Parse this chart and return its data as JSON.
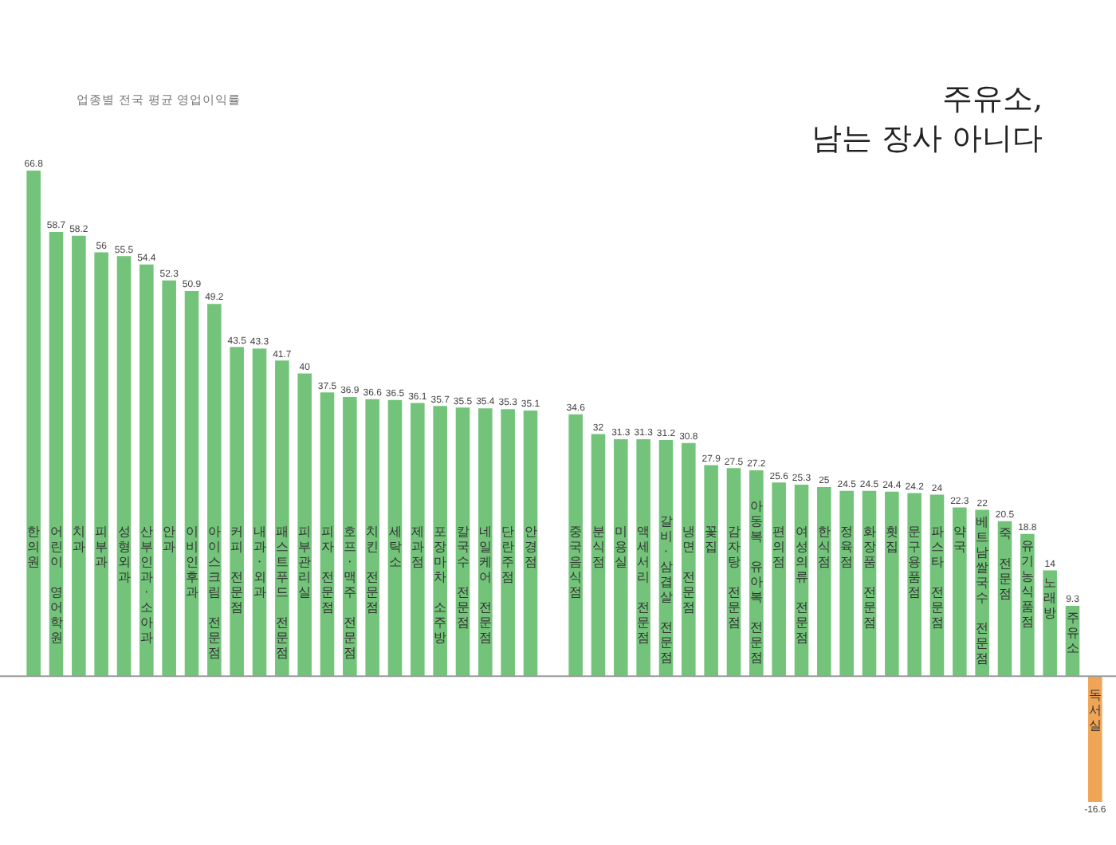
{
  "chart_data": {
    "type": "bar",
    "title": "주유소,\n남는 장사 아니다",
    "subtitle": "업종별 전국 평균 영업이익률",
    "categories": [
      "한의원",
      "어린이 영어학원",
      "치과",
      "피부과",
      "성형외과",
      "산부인과·소아과",
      "안과",
      "이비인후과",
      "아이스크림 전문점",
      "커피 전문점",
      "내과·외과",
      "패스트푸드 전문점",
      "피부관리실",
      "피자 전문점",
      "호프·맥주 전문점",
      "치킨 전문점",
      "세탁소",
      "제과점",
      "포장마차 소주방",
      "칼국수 전문점",
      "네일케어 전문점",
      "단란주점",
      "안경점",
      null,
      "중국음식점",
      "분식점",
      "미용실",
      "액세서리 전문점",
      "갈비·삼겹살 전문점",
      "냉면 전문점",
      "꽃집",
      "감자탕 전문점",
      "아동복 유아복 전문점",
      "편의점",
      "여성의류 전문점",
      "한식점",
      "정육점",
      "화장품 전문점",
      "횟집",
      "문구용품점",
      "파스타 전문점",
      "약국",
      "베트남쌀국수 전문점",
      "죽 전문점",
      "유기농식품점",
      "노래방",
      "주유소",
      "독서실"
    ],
    "values": [
      66.8,
      58.7,
      58.2,
      56,
      55.5,
      54.4,
      52.3,
      50.9,
      49.2,
      43.5,
      43.3,
      41.7,
      40,
      37.5,
      36.9,
      36.6,
      36.5,
      36.1,
      35.7,
      35.5,
      35.4,
      35.3,
      35.1,
      null,
      34.6,
      32,
      31.3,
      31.3,
      31.2,
      30.8,
      27.9,
      27.5,
      27.2,
      25.6,
      25.3,
      25,
      24.5,
      24.5,
      24.4,
      24.2,
      24,
      22.3,
      22,
      20.5,
      18.8,
      14,
      9.3,
      -16.6
    ],
    "colors": [
      "#73c47a",
      "#73c47a",
      "#73c47a",
      "#73c47a",
      "#73c47a",
      "#73c47a",
      "#73c47a",
      "#73c47a",
      "#73c47a",
      "#73c47a",
      "#73c47a",
      "#73c47a",
      "#73c47a",
      "#73c47a",
      "#73c47a",
      "#73c47a",
      "#73c47a",
      "#73c47a",
      "#73c47a",
      "#73c47a",
      "#73c47a",
      "#73c47a",
      "#73c47a",
      null,
      "#73c47a",
      "#73c47a",
      "#73c47a",
      "#73c47a",
      "#73c47a",
      "#73c47a",
      "#73c47a",
      "#73c47a",
      "#73c47a",
      "#73c47a",
      "#73c47a",
      "#73c47a",
      "#73c47a",
      "#73c47a",
      "#73c47a",
      "#73c47a",
      "#73c47a",
      "#73c47a",
      "#73c47a",
      "#73c47a",
      "#73c47a",
      "#73c47a",
      "#73c47a",
      "#f0a556"
    ],
    "data_labels": true,
    "legend": false
  }
}
